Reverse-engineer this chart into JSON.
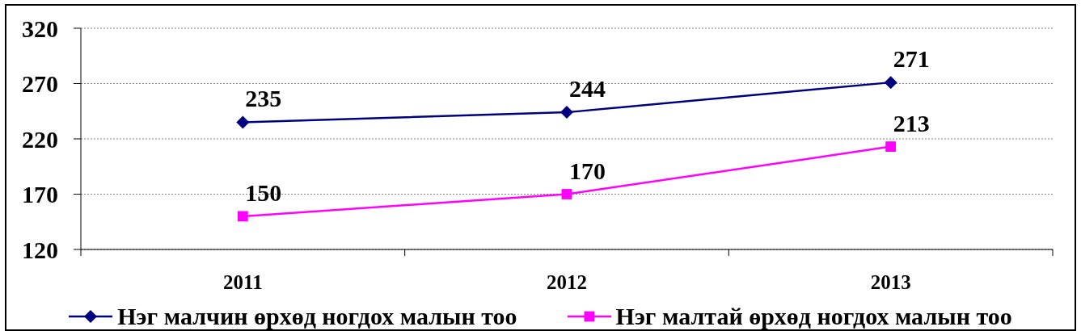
{
  "chart_data": {
    "type": "line",
    "categories": [
      "2011",
      "2012",
      "2013"
    ],
    "series": [
      {
        "name": "Нэг малчин өрхөд ногдох малын тоо",
        "color": "#000080",
        "values": [
          235,
          244,
          271
        ],
        "marker": "diamond"
      },
      {
        "name": "Нэг малтай өрхөд ногдох малын тоо",
        "color": "#ff00ff",
        "values": [
          150,
          170,
          213
        ],
        "marker": "square"
      }
    ],
    "ylim": [
      120,
      320
    ],
    "yticks": [
      120,
      170,
      220,
      270,
      320
    ],
    "grid": "y",
    "legend": "bottom",
    "data_labels": true
  }
}
